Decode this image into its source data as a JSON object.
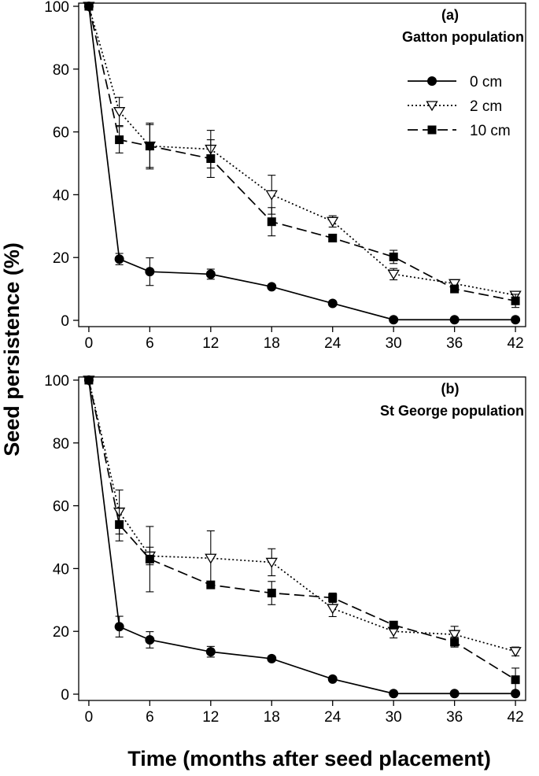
{
  "chart_data": {
    "type": "line",
    "ylabel": "Seed persistence (%)",
    "xlabel": "Time (months after seed placement)",
    "x_ticks": [
      0,
      6,
      12,
      18,
      24,
      30,
      36,
      42
    ],
    "y_ticks": [
      0,
      20,
      40,
      60,
      80,
      100
    ],
    "xlim": [
      -1,
      43
    ],
    "ylim": [
      -2,
      101
    ],
    "legend": {
      "position": "top-right",
      "entries": [
        {
          "label": "0 cm",
          "series": "0cm"
        },
        {
          "label": "2 cm",
          "series": "2cm"
        },
        {
          "label": "10 cm",
          "series": "10cm"
        }
      ]
    },
    "panels": [
      {
        "tag": "(a)",
        "title": "Gatton population",
        "x": [
          0,
          3,
          6,
          12,
          18,
          24,
          30,
          36,
          42
        ],
        "series": [
          {
            "name": "0 cm",
            "key": "0cm",
            "values": [
              100,
              19.5,
              15.5,
              14.7,
              10.7,
              5.4,
              0.2,
              0.2,
              0.2
            ],
            "errors": [
              0,
              1.8,
              4.4,
              1.6,
              0.6,
              0.6,
              0.5,
              0.5,
              0.5
            ]
          },
          {
            "name": "2 cm",
            "key": "2cm",
            "values": [
              100,
              66.5,
              55.5,
              54.5,
              40,
              31.5,
              14.7,
              11.7,
              8
            ],
            "errors": [
              0,
              4.5,
              6.8,
              6,
              6.2,
              1.8,
              1.8,
              1,
              1
            ]
          },
          {
            "name": "10 cm",
            "key": "10cm",
            "values": [
              100,
              57.5,
              55.5,
              51.5,
              31.4,
              26.2,
              20.2,
              10,
              6.2
            ],
            "errors": [
              0,
              4.2,
              7.3,
              6,
              4.5,
              1,
              2.1,
              1,
              2.1
            ]
          }
        ]
      },
      {
        "tag": "(b)",
        "title": "St George population",
        "x": [
          0,
          3,
          6,
          12,
          18,
          24,
          30,
          36,
          42
        ],
        "series": [
          {
            "name": "0 cm",
            "key": "0cm",
            "values": [
              100,
              21.5,
              17.3,
              13.5,
              11.3,
              4.8,
              0.2,
              0.2,
              0.2
            ],
            "errors": [
              0,
              3.3,
              2.6,
              1.7,
              0.7,
              0.6,
              0.5,
              0.5,
              0.5
            ]
          },
          {
            "name": "2 cm",
            "key": "2cm",
            "values": [
              100,
              58,
              44,
              43.3,
              42,
              27.3,
              20,
              19,
              13.6
            ],
            "errors": [
              0,
              7,
              2.8,
              8.7,
              4.3,
              2.6,
              2.1,
              2.6,
              1.4
            ]
          },
          {
            "name": "10 cm",
            "key": "10cm",
            "values": [
              100,
              54,
              43,
              34.8,
              32.2,
              30.7,
              22,
              16.6,
              4.6
            ],
            "errors": [
              0,
              5.2,
              10.4,
              1,
              3.7,
              1.5,
              0.7,
              1.6,
              3.7
            ]
          }
        ]
      }
    ]
  }
}
